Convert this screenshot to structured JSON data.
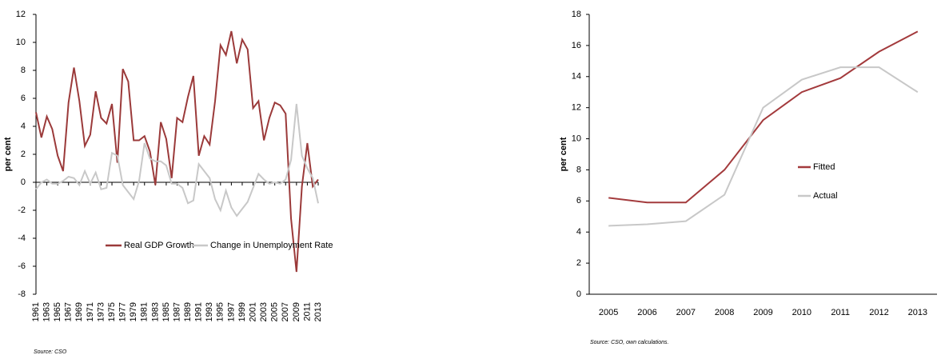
{
  "chart_data": [
    {
      "type": "line",
      "ylabel": "per cent",
      "x": [
        1961,
        1962,
        1963,
        1964,
        1965,
        1966,
        1967,
        1968,
        1969,
        1970,
        1971,
        1972,
        1973,
        1974,
        1975,
        1976,
        1977,
        1978,
        1979,
        1980,
        1981,
        1982,
        1983,
        1984,
        1985,
        1986,
        1987,
        1988,
        1989,
        1990,
        1991,
        1992,
        1993,
        1994,
        1995,
        1996,
        1997,
        1998,
        1999,
        2000,
        2001,
        2002,
        2003,
        2004,
        2005,
        2006,
        2007,
        2008,
        2009,
        2010,
        2011,
        2012,
        2013
      ],
      "xlim": [
        1961,
        2013
      ],
      "xticks": [
        1961,
        1963,
        1965,
        1967,
        1969,
        1971,
        1973,
        1975,
        1977,
        1979,
        1981,
        1983,
        1985,
        1987,
        1989,
        1991,
        1993,
        1995,
        1997,
        1999,
        2001,
        2003,
        2005,
        2007,
        2009,
        2011,
        2013
      ],
      "ylim": [
        -8,
        12
      ],
      "yticks": [
        -8,
        -6,
        -4,
        -2,
        0,
        2,
        4,
        6,
        8,
        10,
        12
      ],
      "grid": false,
      "series": [
        {
          "name": "Real GDP Growth",
          "color": "#9b3a3a",
          "values": [
            5.0,
            3.2,
            4.7,
            3.8,
            1.9,
            0.8,
            5.7,
            8.2,
            5.8,
            2.6,
            3.4,
            6.5,
            4.6,
            4.2,
            5.6,
            1.4,
            8.1,
            7.2,
            3.0,
            3.0,
            3.3,
            2.2,
            -0.2,
            4.3,
            3.1,
            0.3,
            4.6,
            4.3,
            6.1,
            7.6,
            1.9,
            3.3,
            2.7,
            5.8,
            9.8,
            9.1,
            10.8,
            8.5,
            10.2,
            9.5,
            5.3,
            5.8,
            3.0,
            4.6,
            5.7,
            5.5,
            4.9,
            -2.6,
            -6.4,
            -0.3,
            2.8,
            -0.3,
            0.2
          ]
        },
        {
          "name": "Change in Unemployment Rate",
          "color": "#c8c8c8",
          "values": [
            -0.5,
            0.0,
            0.2,
            -0.1,
            -0.1,
            0.1,
            0.4,
            0.3,
            -0.2,
            0.8,
            -0.1,
            0.7,
            -0.5,
            -0.4,
            2.1,
            1.9,
            -0.2,
            -0.7,
            -1.2,
            0.1,
            2.8,
            1.7,
            1.5,
            1.5,
            1.2,
            -0.1,
            -0.1,
            -0.4,
            -1.5,
            -1.3,
            1.3,
            0.8,
            0.3,
            -1.2,
            -2.0,
            -0.6,
            -1.8,
            -2.4,
            -1.9,
            -1.4,
            -0.4,
            0.6,
            0.2,
            -0.1,
            0.0,
            -0.1,
            0.2,
            1.6,
            5.6,
            1.9,
            1.0,
            0.3,
            -1.5
          ]
        }
      ],
      "source": "Source: CSO"
    },
    {
      "type": "line",
      "ylabel": "per cent",
      "categories": [
        "2005",
        "2006",
        "2007",
        "2008",
        "2009",
        "2010",
        "2011",
        "2012",
        "2013"
      ],
      "ylim": [
        0,
        18
      ],
      "yticks": [
        0,
        2,
        4,
        6,
        8,
        10,
        12,
        14,
        16,
        18
      ],
      "grid": false,
      "series": [
        {
          "name": "Fitted",
          "color": "#a33a3c",
          "values": [
            6.2,
            5.9,
            5.9,
            8.0,
            11.2,
            13.0,
            13.9,
            15.6,
            16.9
          ]
        },
        {
          "name": "Actual",
          "color": "#c8c8c8",
          "values": [
            4.4,
            4.5,
            4.7,
            6.4,
            12.0,
            13.8,
            14.6,
            14.6,
            13.0
          ]
        }
      ],
      "source": "Source: CSO, own calculations."
    }
  ]
}
